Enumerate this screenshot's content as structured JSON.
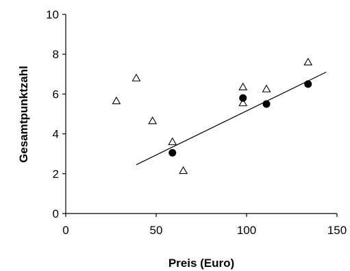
{
  "chart_data": {
    "type": "scatter",
    "xlabel": "Preis (Euro)",
    "ylabel": "Gesamtpunktzahl",
    "xlim": [
      0,
      150
    ],
    "ylim": [
      0,
      10
    ],
    "x_ticks": [
      0,
      50,
      100,
      150
    ],
    "y_ticks": [
      0,
      2,
      4,
      6,
      8,
      10
    ],
    "x_tick_labels": [
      "0",
      "50",
      "100",
      "150"
    ],
    "y_tick_labels": [
      "0",
      "2",
      "4",
      "6",
      "8",
      "10"
    ],
    "grid": false,
    "legend": "none",
    "series": [
      {
        "marker": "triangle-open",
        "points": [
          {
            "x": 28,
            "y": 5.65
          },
          {
            "x": 39,
            "y": 6.8
          },
          {
            "x": 48,
            "y": 4.65
          },
          {
            "x": 59,
            "y": 3.6
          },
          {
            "x": 65,
            "y": 2.15
          },
          {
            "x": 98,
            "y": 6.35
          },
          {
            "x": 98,
            "y": 5.55
          },
          {
            "x": 111,
            "y": 6.25
          },
          {
            "x": 134,
            "y": 7.6
          }
        ]
      },
      {
        "marker": "circle-filled",
        "points": [
          {
            "x": 59,
            "y": 3.05
          },
          {
            "x": 98,
            "y": 5.8
          },
          {
            "x": 111,
            "y": 5.5
          },
          {
            "x": 134,
            "y": 6.5
          }
        ]
      }
    ],
    "trendline": {
      "type": "linear",
      "from": {
        "x": 39,
        "y": 2.45
      },
      "to": {
        "x": 144,
        "y": 7.1
      }
    }
  }
}
